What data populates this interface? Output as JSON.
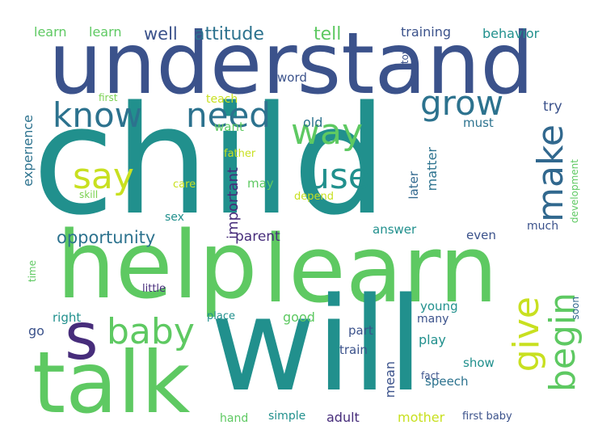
{
  "words": [
    {
      "text": "child",
      "color": "#21908d"
    },
    {
      "text": "understand",
      "color": "#3b528b"
    },
    {
      "text": "help",
      "color": "#5ec962"
    },
    {
      "text": "learn",
      "color": "#5ec962"
    },
    {
      "text": "will",
      "color": "#21908d"
    },
    {
      "text": "talk",
      "color": "#5ec962"
    },
    {
      "text": "s",
      "color": "#472d7b"
    },
    {
      "text": "know",
      "color": "#2c728e"
    },
    {
      "text": "need",
      "color": "#2c728e"
    },
    {
      "text": "grow",
      "color": "#2c728e"
    },
    {
      "text": "way",
      "color": "#5ec962"
    },
    {
      "text": "use",
      "color": "#21908d"
    },
    {
      "text": "say",
      "color": "#c8e020"
    },
    {
      "text": "make",
      "color": "#31688e"
    },
    {
      "text": "give",
      "color": "#c8e020"
    },
    {
      "text": "begin",
      "color": "#5ec962"
    },
    {
      "text": "baby",
      "color": "#5ec962"
    },
    {
      "text": "opportunity",
      "color": "#2c728e"
    },
    {
      "text": "attitude",
      "color": "#2c728e"
    },
    {
      "text": "tell",
      "color": "#5ec962"
    },
    {
      "text": "well",
      "color": "#3b528b"
    },
    {
      "text": "learn",
      "color": "#5ec962"
    },
    {
      "text": "learn",
      "color": "#5ec962"
    },
    {
      "text": "training",
      "color": "#3b528b"
    },
    {
      "text": "behavior",
      "color": "#21908d"
    },
    {
      "text": "toy",
      "color": "#3b528b"
    },
    {
      "text": "word",
      "color": "#3b528b"
    },
    {
      "text": "first",
      "color": "#7ad151"
    },
    {
      "text": "teach",
      "color": "#c8e020"
    },
    {
      "text": "old",
      "color": "#2c728e"
    },
    {
      "text": "try",
      "color": "#3b528b"
    },
    {
      "text": "must",
      "color": "#2c728e"
    },
    {
      "text": "want",
      "color": "#5ec962"
    },
    {
      "text": "experience",
      "color": "#2c728e"
    },
    {
      "text": "father",
      "color": "#c8e020"
    },
    {
      "text": "important",
      "color": "#472d7b"
    },
    {
      "text": "matter",
      "color": "#2c728e"
    },
    {
      "text": "later",
      "color": "#31688e"
    },
    {
      "text": "development",
      "color": "#5ec962"
    },
    {
      "text": "care",
      "color": "#c8e020"
    },
    {
      "text": "may",
      "color": "#5ec962"
    },
    {
      "text": "depend",
      "color": "#c8e020"
    },
    {
      "text": "skill",
      "color": "#7ad151"
    },
    {
      "text": "sex",
      "color": "#21908d"
    },
    {
      "text": "parent",
      "color": "#472d7b"
    },
    {
      "text": "answer",
      "color": "#21908d"
    },
    {
      "text": "even",
      "color": "#3b528b"
    },
    {
      "text": "much",
      "color": "#3b528b"
    },
    {
      "text": "time",
      "color": "#5ec962"
    },
    {
      "text": "little",
      "color": "#472d7b"
    },
    {
      "text": "right",
      "color": "#21908d"
    },
    {
      "text": "place",
      "color": "#21908d"
    },
    {
      "text": "good",
      "color": "#5ec962"
    },
    {
      "text": "young",
      "color": "#21908d"
    },
    {
      "text": "many",
      "color": "#3b528b"
    },
    {
      "text": "soon",
      "color": "#31688e"
    },
    {
      "text": "go",
      "color": "#3b528b"
    },
    {
      "text": "part",
      "color": "#3b528b"
    },
    {
      "text": "play",
      "color": "#21908d"
    },
    {
      "text": "train",
      "color": "#3b528b"
    },
    {
      "text": "show",
      "color": "#21908d"
    },
    {
      "text": "mean",
      "color": "#3b528b"
    },
    {
      "text": "speech",
      "color": "#2c728e"
    },
    {
      "text": "fact",
      "color": "#3b528b"
    },
    {
      "text": "hand",
      "color": "#5ec962"
    },
    {
      "text": "simple",
      "color": "#21908d"
    },
    {
      "text": "adult",
      "color": "#472d7b"
    },
    {
      "text": "mother",
      "color": "#c8e020"
    },
    {
      "text": "first baby",
      "color": "#3b528b"
    }
  ]
}
